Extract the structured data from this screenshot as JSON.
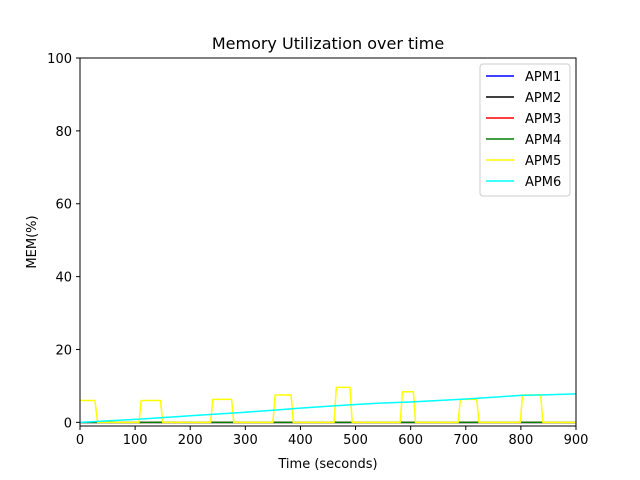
{
  "chart_data": {
    "type": "line",
    "title": "Memory Utilization over time",
    "xlabel": "Time (seconds)",
    "ylabel": "MEM(%)",
    "xlim": [
      0,
      900
    ],
    "ylim": [
      -1,
      100
    ],
    "xticks": [
      0,
      100,
      200,
      300,
      400,
      500,
      600,
      700,
      800,
      900
    ],
    "yticks": [
      0,
      20,
      40,
      60,
      80,
      100
    ],
    "grid": false,
    "legend_position": "top-right",
    "series": [
      {
        "name": "APM1",
        "color": "#0000ff",
        "x": [
          0,
          900
        ],
        "y": [
          0,
          0
        ]
      },
      {
        "name": "APM2",
        "color": "#000000",
        "x": [
          0,
          900
        ],
        "y": [
          0,
          0
        ]
      },
      {
        "name": "APM3",
        "color": "#ff0000",
        "x": [
          0,
          900
        ],
        "y": [
          0,
          0
        ]
      },
      {
        "name": "APM4",
        "color": "#008000",
        "x": [
          0,
          900
        ],
        "y": [
          0,
          0
        ]
      },
      {
        "name": "APM5",
        "color": "#ffff00",
        "x": [
          0,
          27,
          32,
          107,
          111,
          146,
          150,
          237,
          241,
          275,
          279,
          350,
          354,
          383,
          387,
          461,
          465,
          490,
          494,
          581,
          585,
          605,
          609,
          686,
          690,
          720,
          724,
          799,
          803,
          836,
          840,
          900
        ],
        "y": [
          6,
          6,
          0,
          0,
          6,
          6,
          0,
          0,
          6.3,
          6.3,
          0,
          0,
          7.5,
          7.5,
          0,
          0,
          9.6,
          9.6,
          0,
          0,
          8.4,
          8.4,
          0,
          0,
          6.3,
          6.3,
          0,
          0,
          7.5,
          7.5,
          0,
          0
        ]
      },
      {
        "name": "APM6",
        "color": "#00ffff",
        "x": [
          0,
          50,
          100,
          150,
          200,
          250,
          300,
          350,
          400,
          450,
          500,
          550,
          600,
          650,
          700,
          750,
          800,
          850,
          900
        ],
        "y": [
          0,
          0.4,
          0.8,
          1.3,
          1.8,
          2.3,
          2.8,
          3.3,
          3.9,
          4.4,
          4.9,
          5.3,
          5.6,
          6.0,
          6.4,
          6.9,
          7.4,
          7.6,
          7.8
        ]
      }
    ]
  }
}
